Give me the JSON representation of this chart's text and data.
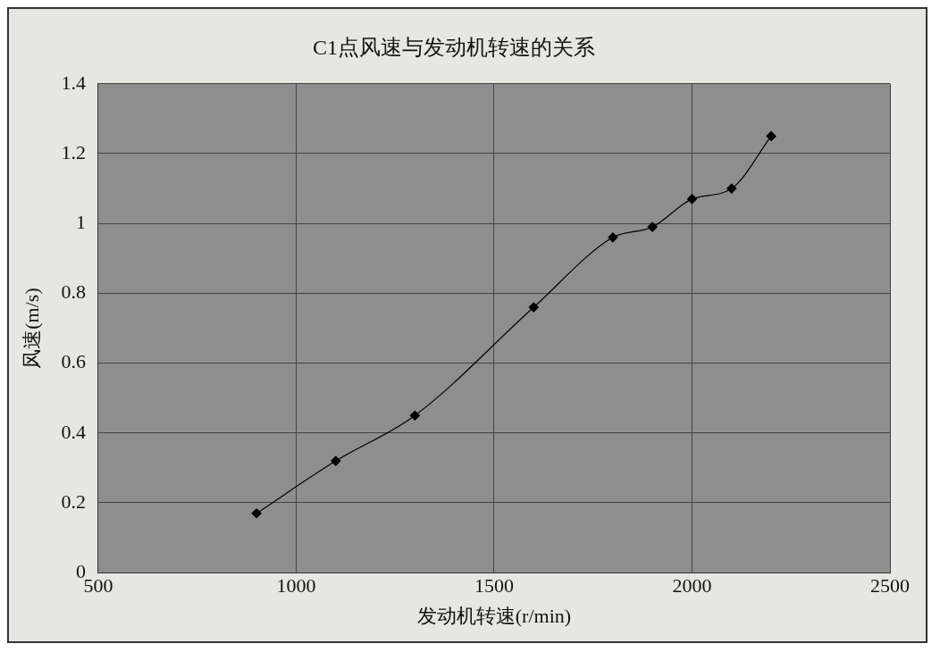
{
  "chart_data": {
    "type": "line",
    "title": "C1点风速与发动机转速的关系",
    "xlabel": "发动机转速(r/min)",
    "ylabel": "风速(m/s)",
    "x": [
      900,
      1100,
      1300,
      1600,
      1800,
      1900,
      2000,
      2100,
      2200
    ],
    "series": [
      {
        "color": "#000000",
        "values": [
          0.17,
          0.32,
          0.45,
          0.76,
          0.96,
          0.99,
          1.07,
          1.1,
          1.25
        ]
      }
    ],
    "xlim": [
      500,
      2500
    ],
    "xticks": [
      500,
      1000,
      1500,
      2000,
      2500
    ],
    "ylim": [
      0,
      1.4
    ],
    "yticks": [
      0,
      0.2,
      0.4,
      0.6,
      0.8,
      1,
      1.2,
      1.4
    ],
    "grid": true,
    "legend": false,
    "marker": "diamond",
    "line_style": "solid"
  }
}
